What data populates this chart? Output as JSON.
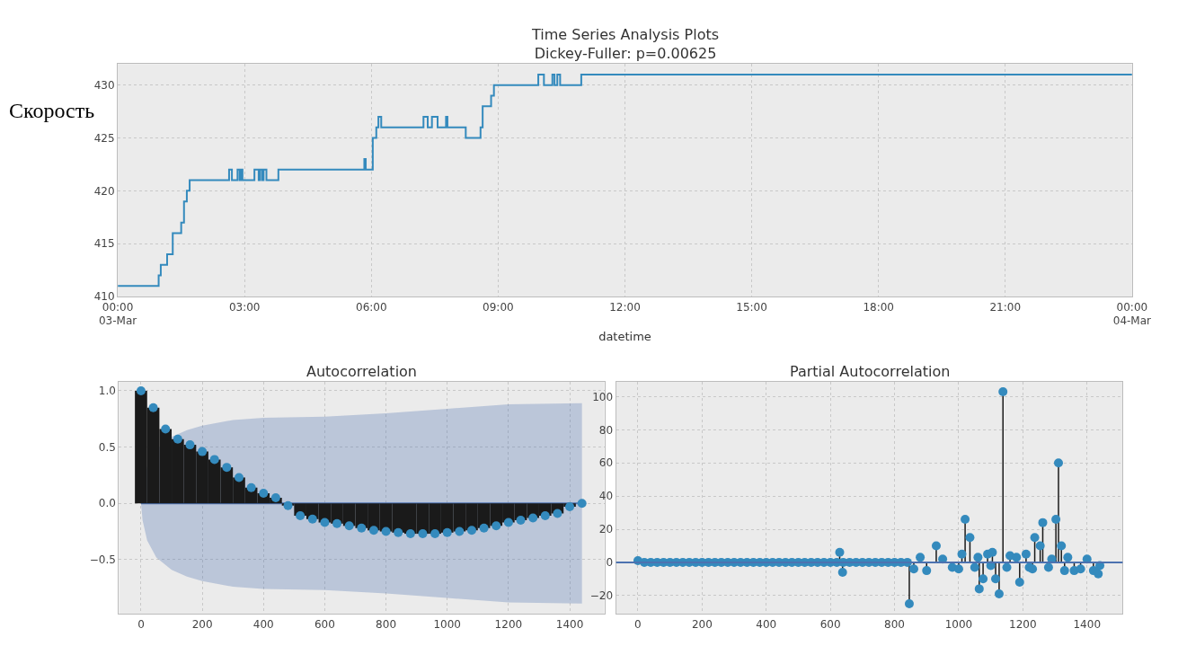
{
  "chart_data": [
    {
      "type": "step",
      "title": "Time Series Analysis Plots\nDickey-Fuller: p=0.00625",
      "xlabel": "datetime",
      "ylabel": "Скорость",
      "color": "#348abd",
      "grid": true,
      "x": [
        "--03-03T00:00",
        "--03-03T00:58",
        "--03-03T01:01",
        "--03-03T01:10",
        "--03-03T01:18",
        "--03-03T01:30",
        "--03-03T01:34",
        "--03-03T01:38",
        "--03-03T01:42",
        "--03-03T02:38",
        "--03-03T02:42",
        "--03-03T02:50",
        "--03-03T02:53",
        "--03-03T02:55",
        "--03-03T02:57",
        "--03-03T03:14",
        "--03-03T03:20",
        "--03-03T03:22",
        "--03-03T03:25",
        "--03-03T03:27",
        "--03-03T03:31",
        "--03-03T03:48",
        "--03-03T05:50",
        "--03-03T05:52",
        "--03-03T06:02",
        "--03-03T06:07",
        "--03-03T06:10",
        "--03-03T06:14",
        "--03-03T07:14",
        "--03-03T07:20",
        "--03-03T07:26",
        "--03-03T07:34",
        "--03-03T07:46",
        "--03-03T07:48",
        "--03-03T08:14",
        "--03-03T08:35",
        "--03-03T08:38",
        "--03-03T08:50",
        "--03-03T08:54",
        "--03-03T09:57",
        "--03-03T10:05",
        "--03-03T10:17",
        "--03-03T10:20",
        "--03-03T10:24",
        "--03-03T10:28",
        "--03-03T10:58",
        "--03-04T00:00"
      ],
      "values": [
        411,
        412,
        413,
        414,
        416,
        417,
        419,
        420,
        421,
        422,
        421,
        422,
        421,
        422,
        421,
        422,
        421,
        422,
        421,
        422,
        421,
        422,
        423,
        422,
        425,
        426,
        427,
        426,
        427,
        426,
        427,
        426,
        427,
        426,
        425,
        426,
        428,
        429,
        430,
        431,
        430,
        431,
        430,
        431,
        430,
        431,
        431
      ],
      "xlim": [
        "--03-03T00:00",
        "--03-04T00:00"
      ],
      "ylim": [
        410,
        432
      ],
      "yticks": [
        410,
        415,
        420,
        425,
        430
      ],
      "xticks": [
        {
          "value": "--03-03T00:00",
          "label": "00:00\n03-Mar"
        },
        {
          "value": "--03-03T03:00",
          "label": "03:00"
        },
        {
          "value": "--03-03T06:00",
          "label": "06:00"
        },
        {
          "value": "--03-03T09:00",
          "label": "09:00"
        },
        {
          "value": "--03-03T12:00",
          "label": "12:00"
        },
        {
          "value": "--03-03T15:00",
          "label": "15:00"
        },
        {
          "value": "--03-03T18:00",
          "label": "18:00"
        },
        {
          "value": "--03-03T21:00",
          "label": "21:00"
        },
        {
          "value": "--03-04T00:00",
          "label": "00:00\n04-Mar"
        }
      ]
    },
    {
      "type": "lollipop",
      "title": "Autocorrelation",
      "grid": true,
      "series": [
        {
          "type": "line",
          "color": "#4c72b0",
          "x": [
            0,
            5,
            20,
            50,
            100,
            150,
            200,
            300,
            400,
            600,
            800,
            1000,
            1200,
            1440
          ],
          "values": [
            0,
            0,
            0,
            0,
            0,
            0,
            0,
            0,
            0,
            0,
            0,
            0,
            0,
            0
          ],
          "upper": [
            0.0,
            0.15,
            0.33,
            0.48,
            0.59,
            0.65,
            0.69,
            0.74,
            0.76,
            0.77,
            0.8,
            0.84,
            0.88,
            0.89
          ],
          "lower": [
            0.0,
            -0.15,
            -0.33,
            -0.48,
            -0.59,
            -0.65,
            -0.69,
            -0.74,
            -0.76,
            -0.77,
            -0.8,
            -0.84,
            -0.88,
            -0.89
          ]
        },
        {
          "type": "lollipop",
          "marker": "circle",
          "color": "#348abd",
          "x": [
            0,
            40,
            80,
            120,
            160,
            200,
            240,
            280,
            320,
            360,
            400,
            440,
            480,
            520,
            560,
            600,
            640,
            680,
            720,
            760,
            800,
            840,
            880,
            920,
            960,
            1000,
            1040,
            1080,
            1120,
            1160,
            1200,
            1240,
            1280,
            1320,
            1360,
            1400,
            1440
          ],
          "values": [
            1.0,
            0.85,
            0.66,
            0.57,
            0.52,
            0.46,
            0.39,
            0.32,
            0.23,
            0.14,
            0.09,
            0.05,
            -0.02,
            -0.11,
            -0.14,
            -0.17,
            -0.18,
            -0.2,
            -0.22,
            -0.24,
            -0.25,
            -0.26,
            -0.27,
            -0.27,
            -0.27,
            -0.26,
            -0.25,
            -0.24,
            -0.22,
            -0.2,
            -0.17,
            -0.15,
            -0.13,
            -0.11,
            -0.09,
            -0.03,
            0.0
          ]
        }
      ],
      "xlim": [
        -72,
        1513
      ],
      "ylim": [
        -0.98,
        1.08
      ],
      "xticks": [
        0,
        200,
        400,
        600,
        800,
        1000,
        1200,
        1400
      ],
      "yticks": [
        {
          "value": 1,
          "label": "1.0"
        },
        {
          "value": 0.5,
          "label": "0.5"
        },
        {
          "value": 0,
          "label": "0.0"
        },
        {
          "value": -0.5,
          "label": "−0.5"
        }
      ]
    },
    {
      "type": "lollipop",
      "title": "Partial Autocorrelation",
      "grid": true,
      "marker": "circle",
      "color": "#348abd",
      "x": [
        0,
        20,
        40,
        60,
        80,
        100,
        120,
        140,
        160,
        180,
        200,
        220,
        240,
        260,
        280,
        300,
        320,
        340,
        360,
        380,
        400,
        420,
        440,
        460,
        480,
        500,
        520,
        540,
        560,
        580,
        600,
        620,
        629,
        638,
        640,
        660,
        680,
        700,
        720,
        740,
        760,
        780,
        800,
        820,
        840,
        846,
        860,
        880,
        900,
        930,
        950,
        980,
        1000,
        1010,
        1020,
        1035,
        1050,
        1060,
        1064,
        1076,
        1090,
        1100,
        1105,
        1115,
        1126,
        1138,
        1150,
        1160,
        1180,
        1190,
        1210,
        1220,
        1230,
        1237,
        1254,
        1262,
        1280,
        1290,
        1303,
        1311,
        1320,
        1330,
        1340,
        1360,
        1380,
        1400,
        1420,
        1435,
        1440
      ],
      "values": [
        1,
        0,
        0,
        0,
        0,
        0,
        0,
        0,
        0,
        0,
        0,
        0,
        0,
        0,
        0,
        0,
        0,
        0,
        0,
        0,
        0,
        0,
        0,
        0,
        0,
        0,
        0,
        0,
        0,
        0,
        0,
        0,
        6,
        -6,
        0,
        0,
        0,
        0,
        0,
        0,
        0,
        0,
        0,
        0,
        0,
        -25,
        -4,
        3,
        -5,
        10,
        2,
        -3,
        -4,
        5,
        26,
        15,
        -3,
        3,
        -16,
        -10,
        5,
        -2,
        6,
        -10,
        -19,
        103,
        -3,
        4,
        3,
        -12,
        5,
        -3,
        -4,
        15,
        10,
        24,
        -3,
        2,
        26,
        60,
        10,
        -5,
        3,
        -5,
        -4,
        2,
        -5,
        -7,
        -2
      ],
      "ref_lines": [
        {
          "axis": "y",
          "value": 0,
          "color": "#4c72b0"
        }
      ],
      "xlim": [
        -68,
        1511
      ],
      "ylim": [
        -31,
        109
      ],
      "xticks": [
        0,
        200,
        400,
        600,
        800,
        1000,
        1200,
        1400
      ],
      "yticks": [
        {
          "value": -20,
          "label": "−20"
        },
        0,
        20,
        40,
        60,
        80,
        100
      ]
    }
  ]
}
